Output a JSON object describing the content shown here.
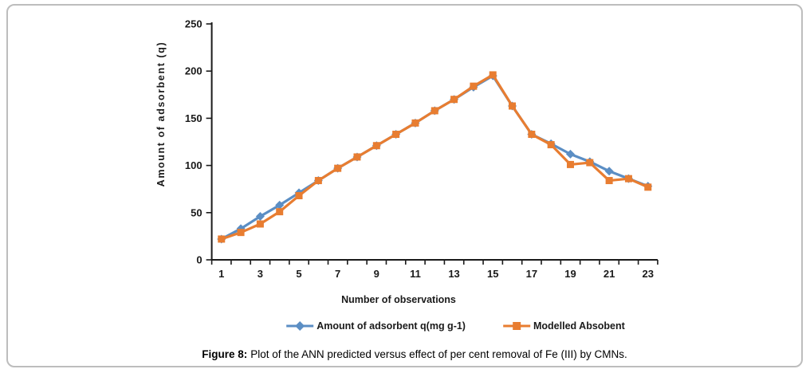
{
  "chart_data": {
    "type": "line",
    "title": "",
    "xlabel": "Number of observations",
    "ylabel": "Amount of adsorbent (q)",
    "x": [
      1,
      2,
      3,
      4,
      5,
      6,
      7,
      8,
      9,
      10,
      11,
      12,
      13,
      14,
      15,
      16,
      17,
      18,
      19,
      20,
      21,
      22,
      23
    ],
    "xtick_labels": [
      "1",
      "3",
      "5",
      "7",
      "9",
      "11",
      "13",
      "15",
      "17",
      "19",
      "21",
      "23"
    ],
    "yticks": [
      0,
      50,
      100,
      150,
      200,
      250
    ],
    "ylim": [
      0,
      250
    ],
    "grid": false,
    "legend_position": "bottom",
    "series": [
      {
        "name": "Amount of adsorbent q(mg g-1)",
        "color": "#5b8ec4",
        "marker": "diamond",
        "values": [
          22,
          33,
          46,
          58,
          71,
          84,
          97,
          109,
          121,
          133,
          145,
          158,
          170,
          183,
          195,
          163,
          133,
          123,
          112,
          104,
          94,
          86,
          78
        ]
      },
      {
        "name": "Modelled Absobent",
        "color": "#e87d31",
        "marker": "square",
        "values": [
          22,
          29,
          38,
          51,
          68,
          84,
          97,
          109,
          121,
          133,
          145,
          158,
          170,
          184,
          196,
          163,
          133,
          122,
          101,
          103,
          84,
          86,
          77
        ]
      }
    ]
  },
  "caption": {
    "label": "Figure 8:",
    "text": "Plot of the ANN predicted versus effect of per cent removal of Fe (III) by CMNs."
  }
}
